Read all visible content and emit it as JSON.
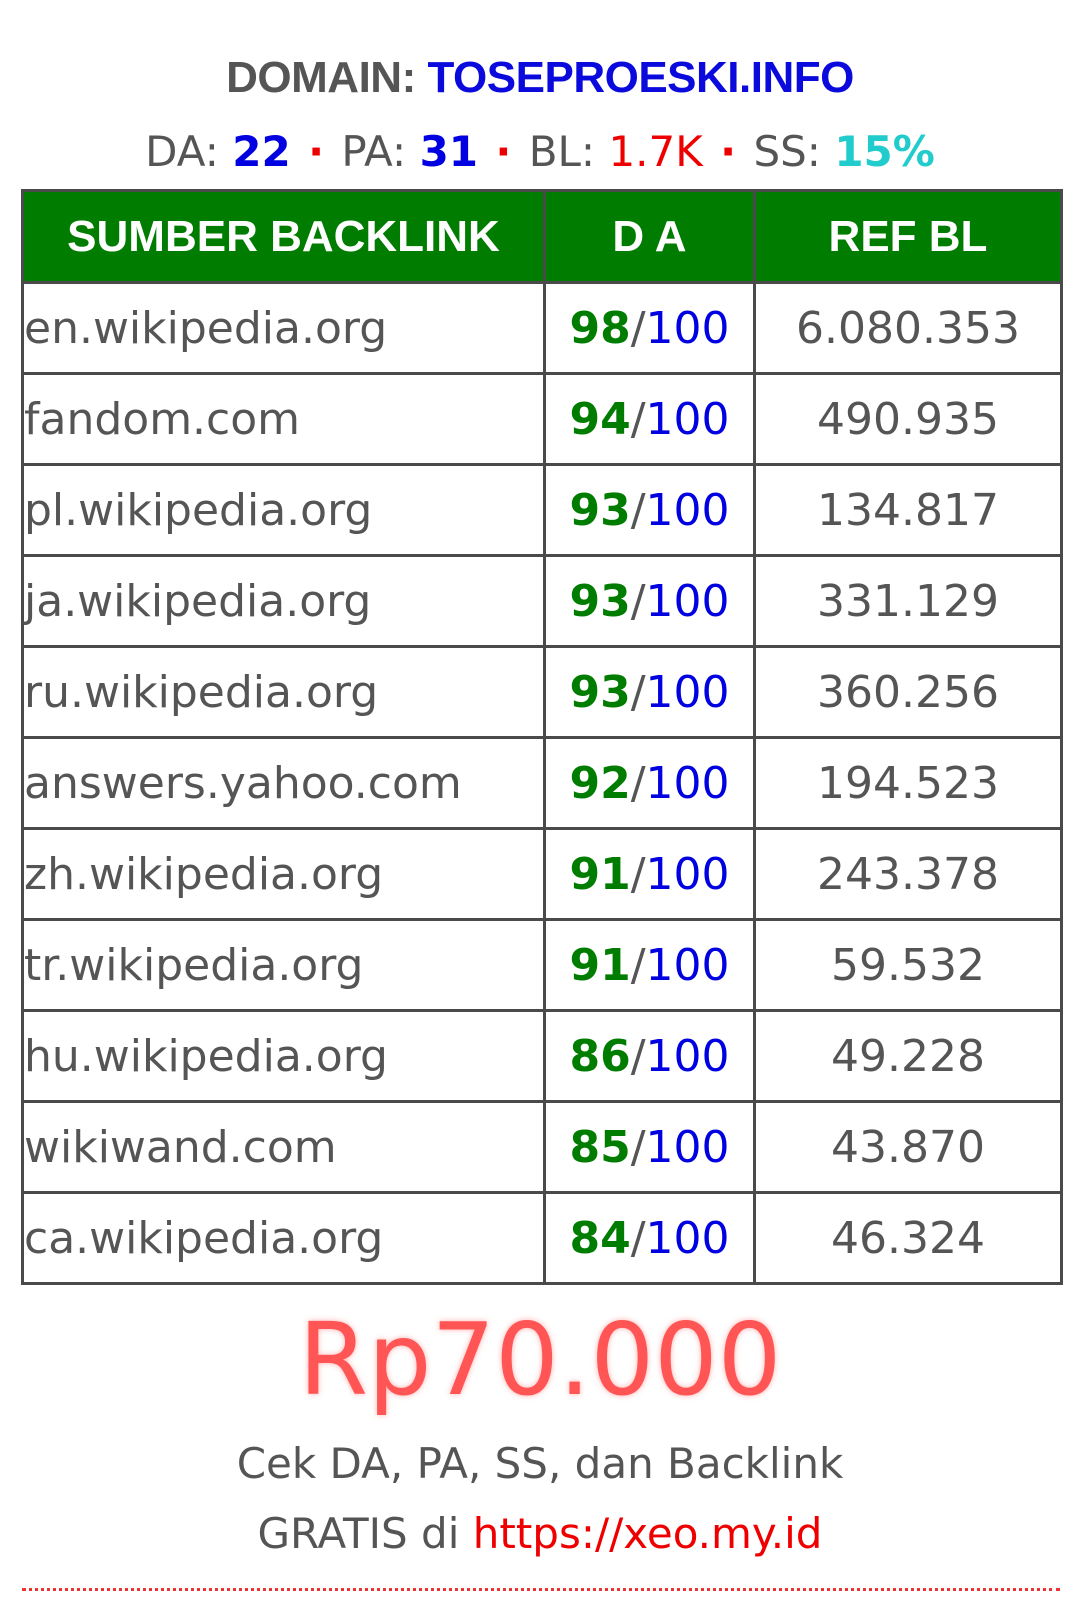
{
  "header": {
    "domain_label": "DOMAIN:",
    "domain_value": "TOSEPROESKI.INFO"
  },
  "stats": {
    "da_label": "DA:",
    "da_value": "22",
    "pa_label": "PA:",
    "pa_value": "31",
    "bl_label": "BL:",
    "bl_value": "1.7K",
    "ss_label": "SS:",
    "ss_value": "15%",
    "separator": "·"
  },
  "table": {
    "headers": [
      "SUMBER BACKLINK",
      "D A",
      "REF BL"
    ],
    "rows": [
      {
        "source": "en.wikipedia.org",
        "da": "98",
        "da_sep": "/",
        "da_max": "100",
        "ref": "6.080.353"
      },
      {
        "source": "fandom.com",
        "da": "94",
        "da_sep": "/",
        "da_max": "100",
        "ref": "490.935"
      },
      {
        "source": "pl.wikipedia.org",
        "da": "93",
        "da_sep": "/",
        "da_max": "100",
        "ref": "134.817"
      },
      {
        "source": "ja.wikipedia.org",
        "da": "93",
        "da_sep": "/",
        "da_max": "100",
        "ref": "331.129"
      },
      {
        "source": "ru.wikipedia.org",
        "da": "93",
        "da_sep": "/",
        "da_max": "100",
        "ref": "360.256"
      },
      {
        "source": "answers.yahoo.com",
        "da": "92",
        "da_sep": "/",
        "da_max": "100",
        "ref": "194.523"
      },
      {
        "source": "zh.wikipedia.org",
        "da": "91",
        "da_sep": "/",
        "da_max": "100",
        "ref": "243.378"
      },
      {
        "source": "tr.wikipedia.org",
        "da": "91",
        "da_sep": "/",
        "da_max": "100",
        "ref": "59.532"
      },
      {
        "source": "hu.wikipedia.org",
        "da": "86",
        "da_sep": "/",
        "da_max": "100",
        "ref": "49.228"
      },
      {
        "source": "wikiwand.com",
        "da": "85",
        "da_sep": "/",
        "da_max": "100",
        "ref": "43.870"
      },
      {
        "source": "ca.wikipedia.org",
        "da": "84",
        "da_sep": "/",
        "da_max": "100",
        "ref": "46.324"
      }
    ]
  },
  "price": "Rp70.000",
  "footer": {
    "line1": "Cek DA, PA, SS, dan Backlink",
    "line2_text": "GRATIS di",
    "line2_link": "https://xeo.my.id"
  },
  "colors": {
    "header_bg": "#007d00",
    "da_score": "#007d00",
    "da_max": "#0000e0",
    "domain": "#0a0adc",
    "price": "#ff5555",
    "link": "#ee0000"
  }
}
